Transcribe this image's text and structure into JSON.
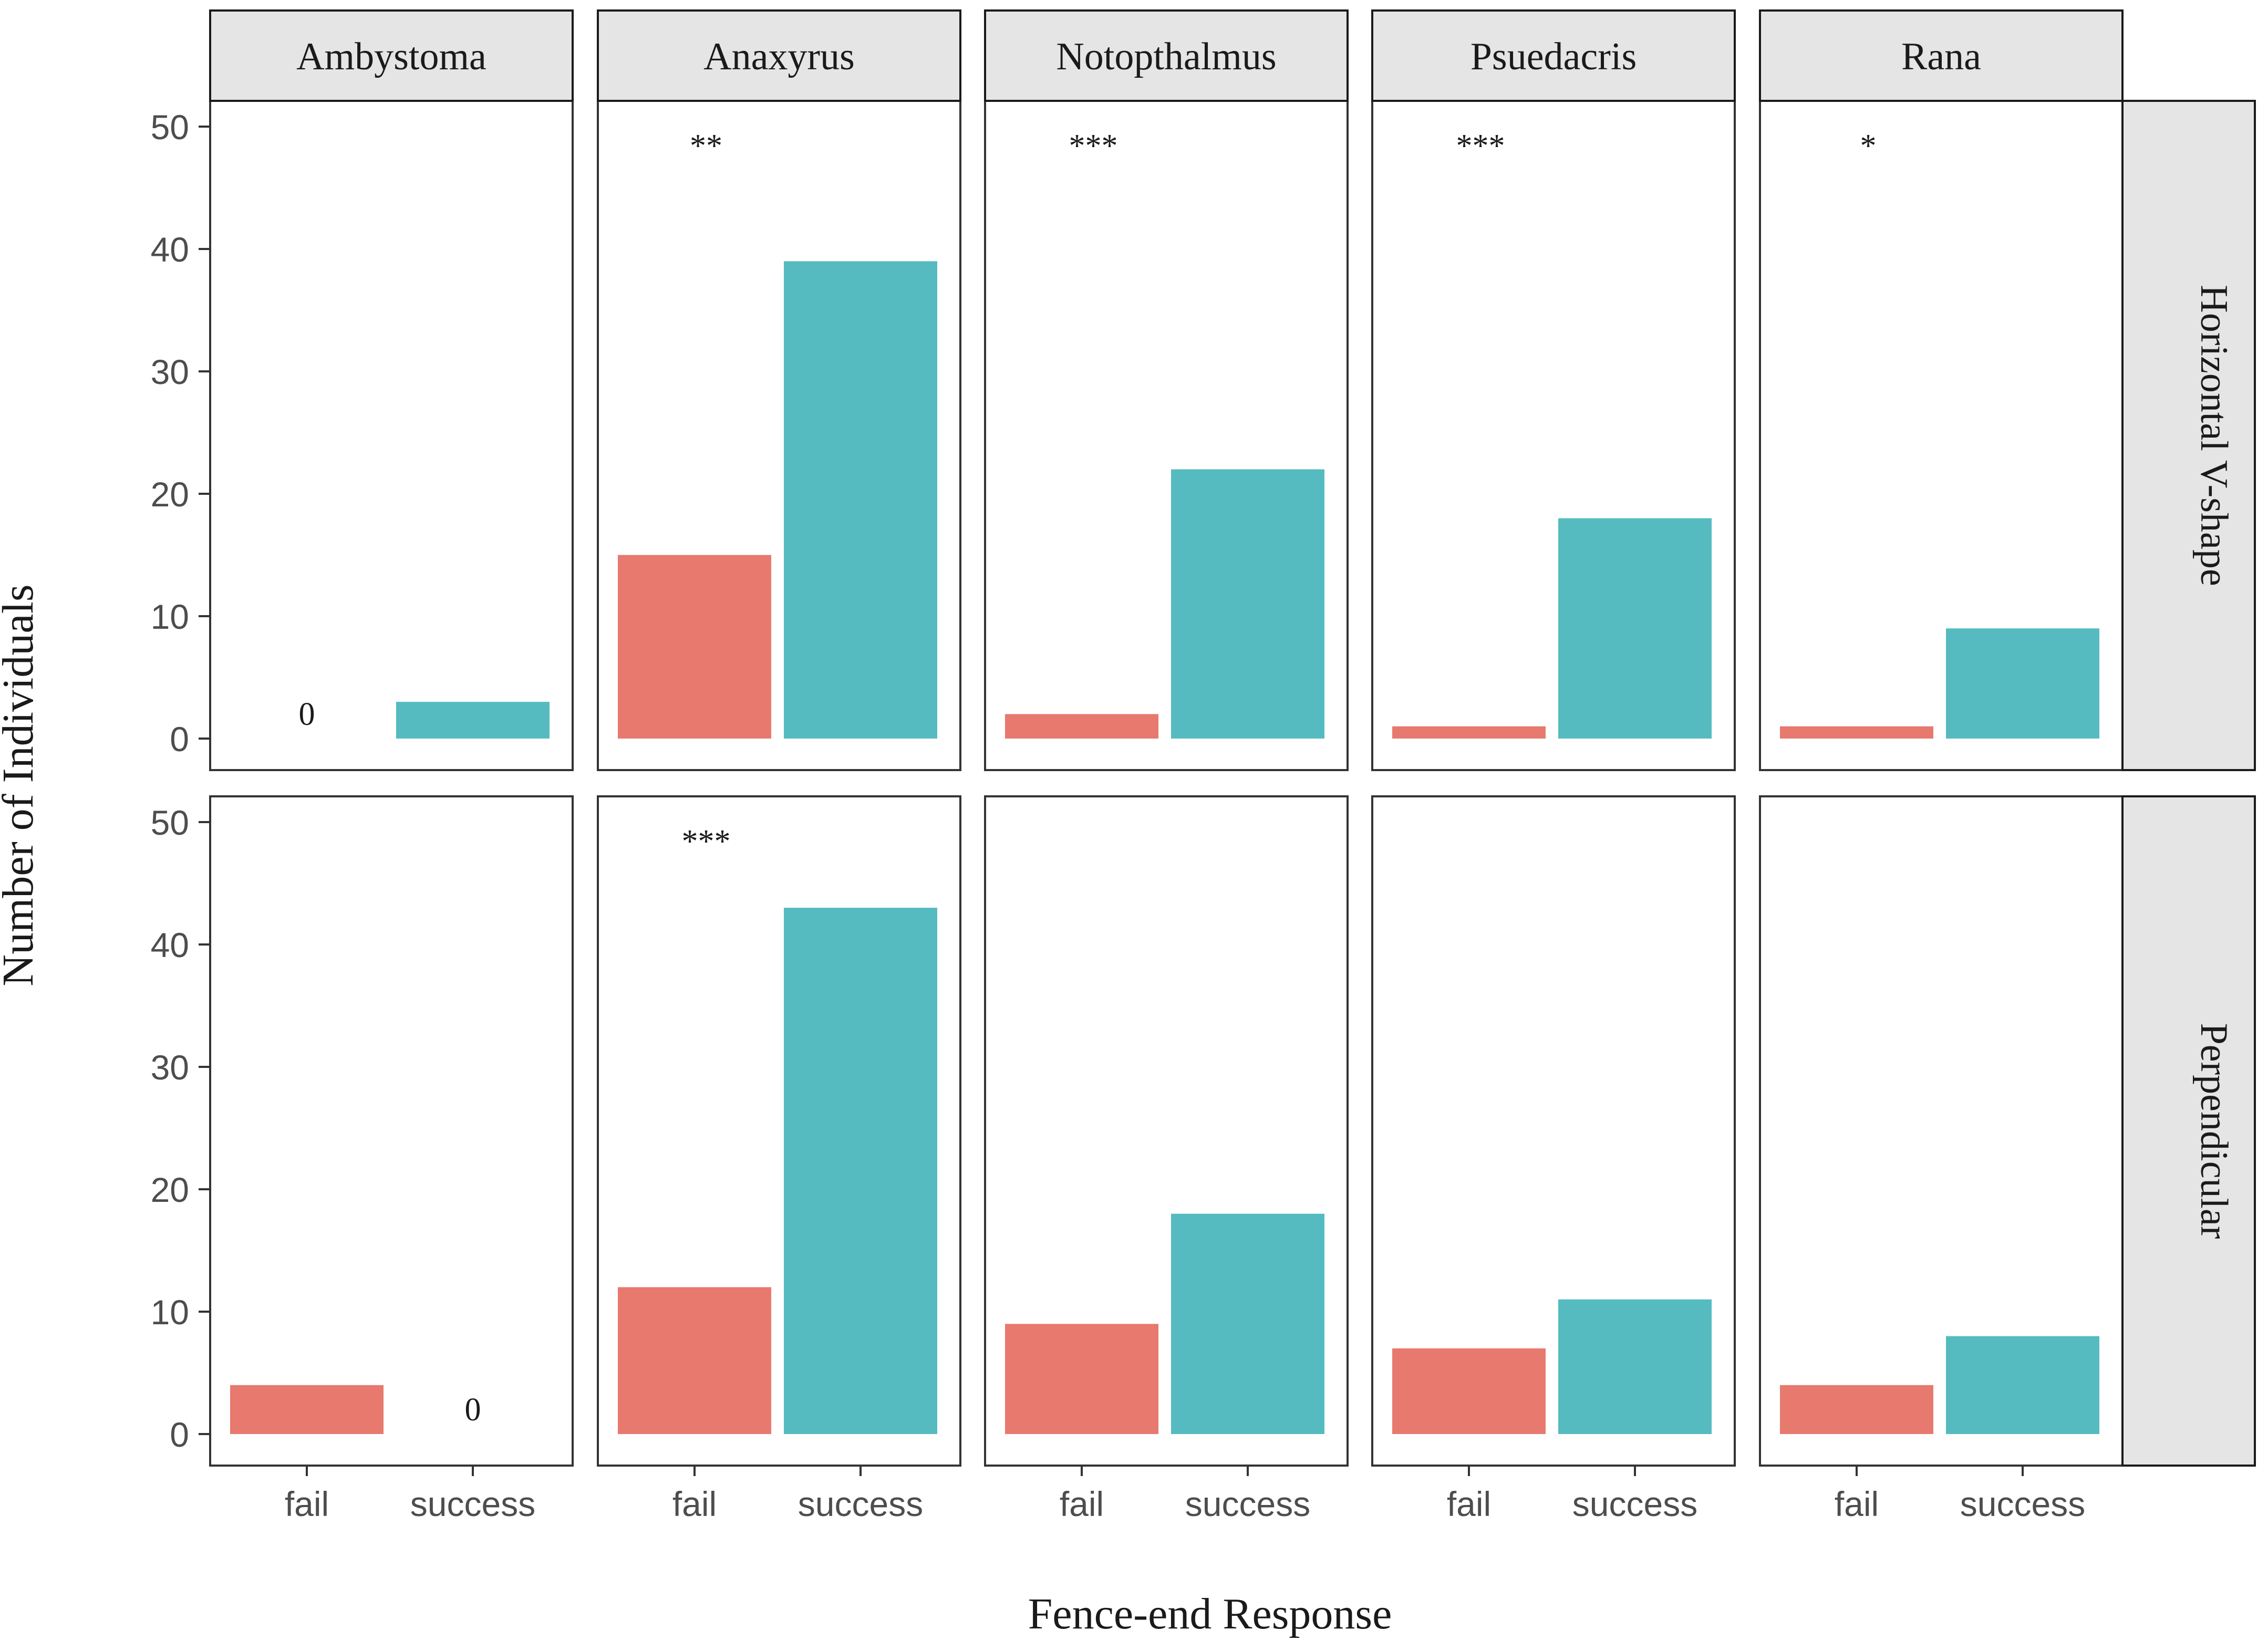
{
  "chart_data": {
    "type": "bar",
    "layout": "facet-grid",
    "xlabel": "Fence-end Response",
    "ylabel": "Number of Individuals",
    "ylim": [
      0,
      50
    ],
    "yticks": [
      0,
      10,
      20,
      30,
      40,
      50
    ],
    "categories": [
      "fail",
      "success"
    ],
    "columns": [
      "Ambystoma",
      "Anaxyrus",
      "Notopthalmus",
      "Psuedacris",
      "Rana"
    ],
    "rows": [
      "Horizontal V-shape",
      "Perpendicular"
    ],
    "colors": {
      "fail": "#e7796f",
      "success": "#55bbc0"
    },
    "panels": [
      {
        "row": "Horizontal V-shape",
        "column": "Ambystoma",
        "values": [
          0,
          3
        ],
        "annotation": "",
        "zero_labels": [
          "0",
          ""
        ]
      },
      {
        "row": "Horizontal V-shape",
        "column": "Anaxyrus",
        "values": [
          15,
          39
        ],
        "annotation": "**",
        "zero_labels": [
          "",
          ""
        ]
      },
      {
        "row": "Horizontal V-shape",
        "column": "Notopthalmus",
        "values": [
          2,
          22
        ],
        "annotation": "***",
        "zero_labels": [
          "",
          ""
        ]
      },
      {
        "row": "Horizontal V-shape",
        "column": "Psuedacris",
        "values": [
          1,
          18
        ],
        "annotation": "***",
        "zero_labels": [
          "",
          ""
        ]
      },
      {
        "row": "Horizontal V-shape",
        "column": "Rana",
        "values": [
          1,
          9
        ],
        "annotation": "*",
        "zero_labels": [
          "",
          ""
        ]
      },
      {
        "row": "Perpendicular",
        "column": "Ambystoma",
        "values": [
          4,
          0
        ],
        "annotation": "",
        "zero_labels": [
          "",
          "0"
        ]
      },
      {
        "row": "Perpendicular",
        "column": "Anaxyrus",
        "values": [
          12,
          43
        ],
        "annotation": "***",
        "zero_labels": [
          "",
          ""
        ]
      },
      {
        "row": "Perpendicular",
        "column": "Notopthalmus",
        "values": [
          9,
          18
        ],
        "annotation": "",
        "zero_labels": [
          "",
          ""
        ]
      },
      {
        "row": "Perpendicular",
        "column": "Psuedacris",
        "values": [
          7,
          11
        ],
        "annotation": "",
        "zero_labels": [
          "",
          ""
        ]
      },
      {
        "row": "Perpendicular",
        "column": "Rana",
        "values": [
          4,
          8
        ],
        "annotation": "",
        "zero_labels": [
          "",
          ""
        ]
      }
    ]
  }
}
